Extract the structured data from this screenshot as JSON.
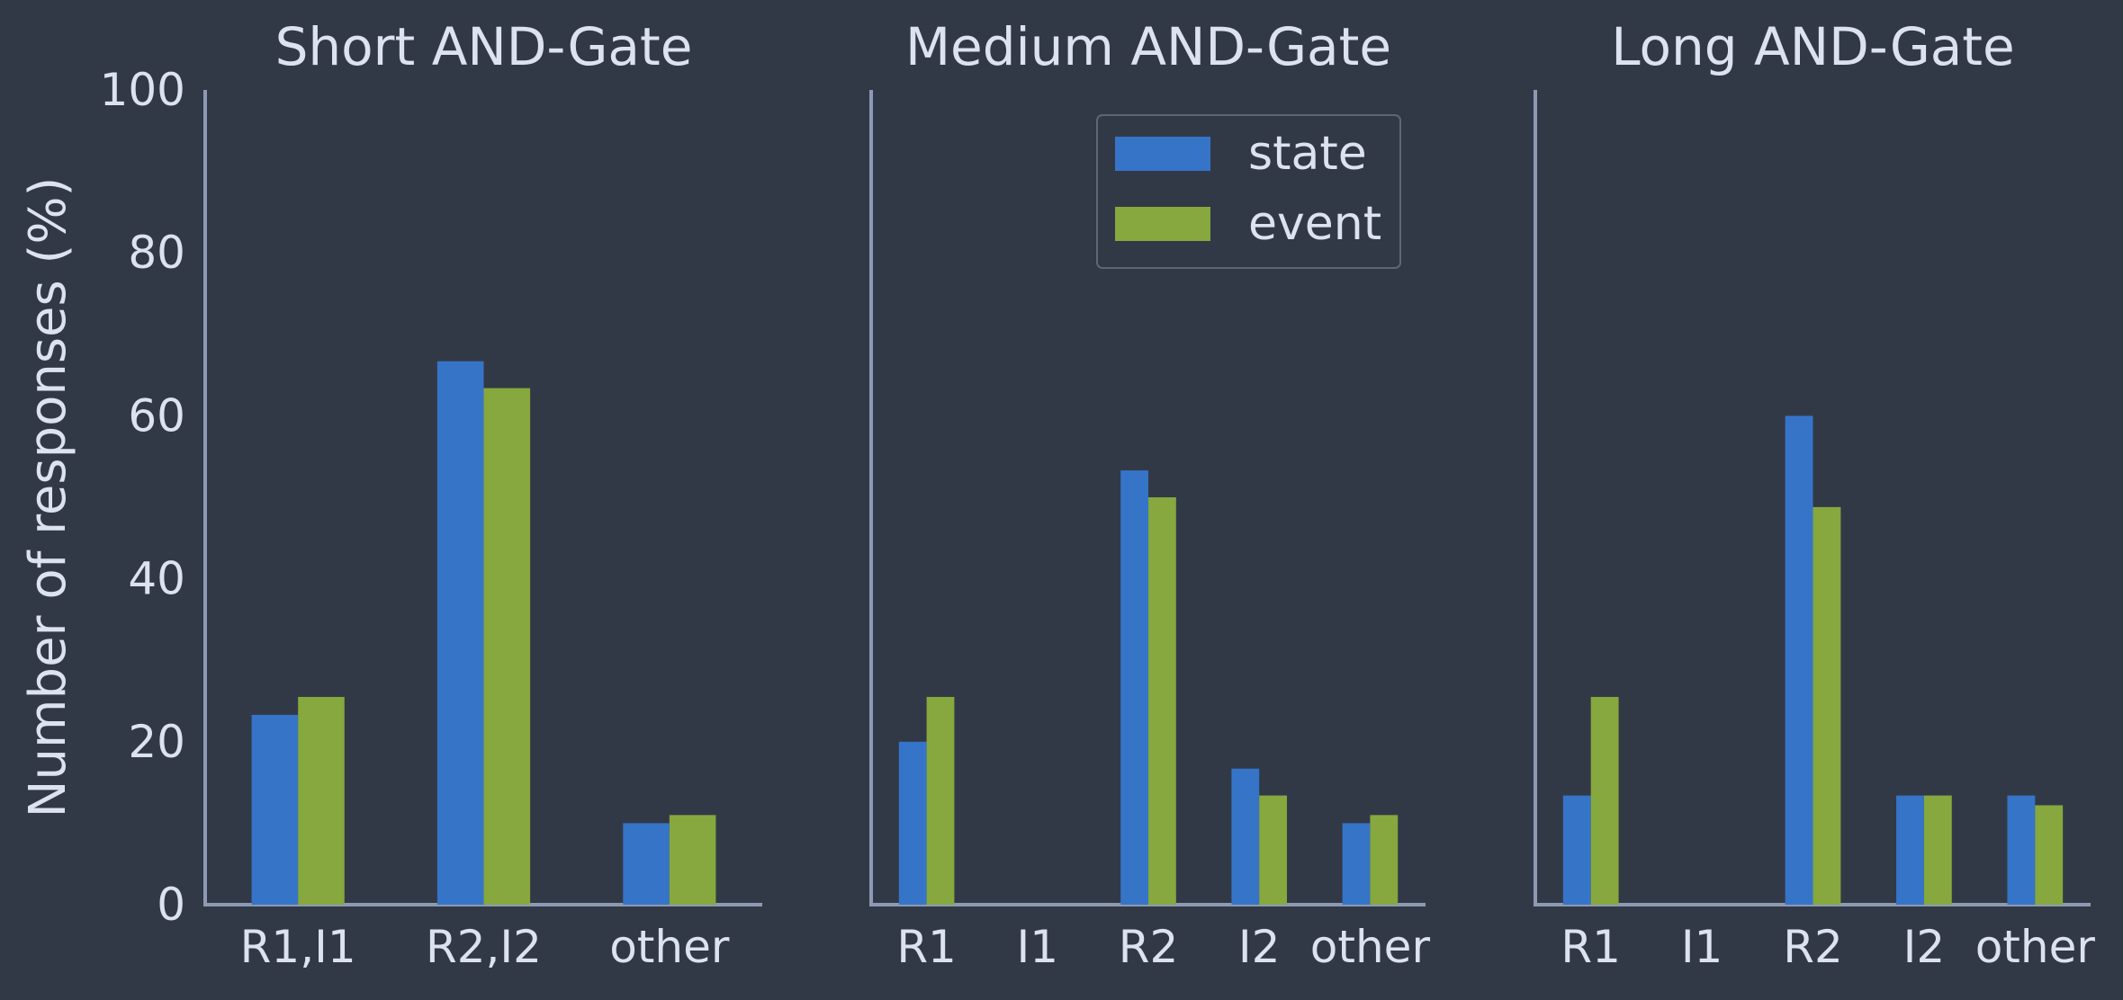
{
  "chart_data": {
    "type": "bar",
    "ylabel": "Number of responses (%)",
    "ylim": [
      0,
      100
    ],
    "yticks": [
      "0",
      "20",
      "40",
      "60",
      "80",
      "100"
    ],
    "legend": {
      "placement": "top-right of middle panel",
      "entries": [
        "state",
        "event"
      ]
    },
    "colors": {
      "state": "#3674c8",
      "event": "#86a83e",
      "background": "#323946",
      "axis": "#8d9ab2",
      "text": "#dce3ee"
    },
    "panels": [
      {
        "title": "Short AND-Gate",
        "categories": [
          "R1,I1",
          "R2,I2",
          "other"
        ],
        "series": [
          {
            "name": "state",
            "values": [
              23.3,
              66.7,
              10.0
            ]
          },
          {
            "name": "event",
            "values": [
              25.5,
              63.4,
              11.0
            ]
          }
        ]
      },
      {
        "title": "Medium AND-Gate",
        "categories": [
          "R1",
          "I1",
          "R2",
          "I2",
          "other"
        ],
        "series": [
          {
            "name": "state",
            "values": [
              20.0,
              0,
              53.3,
              16.7,
              10.0
            ]
          },
          {
            "name": "event",
            "values": [
              25.5,
              0,
              50.0,
              13.4,
              11.0
            ]
          }
        ]
      },
      {
        "title": "Long AND-Gate",
        "categories": [
          "R1",
          "I1",
          "R2",
          "I2",
          "other"
        ],
        "series": [
          {
            "name": "state",
            "values": [
              13.4,
              0,
              60.0,
              13.4,
              13.4
            ]
          },
          {
            "name": "event",
            "values": [
              25.5,
              0,
              48.8,
              13.4,
              12.2
            ]
          }
        ]
      }
    ]
  }
}
